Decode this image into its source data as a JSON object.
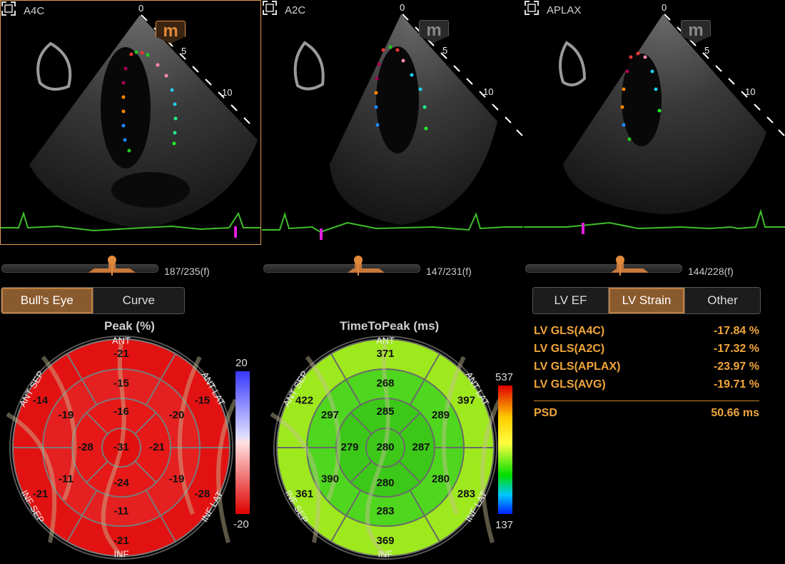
{
  "views": [
    {
      "label": "A4C",
      "frame": "187/235(f)",
      "active": true
    },
    {
      "label": "A2C",
      "frame": "147/231(f)",
      "active": false
    },
    {
      "label": "APLAX",
      "frame": "144/228(f)",
      "active": false
    }
  ],
  "depth_marks": [
    "0",
    "5",
    "10"
  ],
  "badge_letter": "m",
  "tabs_left": [
    {
      "label": "Bull's Eye",
      "on": true
    },
    {
      "label": "Curve",
      "on": false
    }
  ],
  "tabs_right": [
    {
      "label": "LV EF",
      "on": false
    },
    {
      "label": "LV Strain",
      "on": true
    },
    {
      "label": "Other",
      "on": false
    }
  ],
  "peak": {
    "title": "Peak (%)",
    "scale_max": "20",
    "scale_min": "-20",
    "walls": {
      "ant": "ANT",
      "ant_lat": "ANT LAT",
      "inf_lat": "INF LAT",
      "inf": "INF",
      "inf_sep": "INF SEP",
      "ant_sep": "ANT SEP"
    },
    "basal": [
      "-21",
      "-15",
      "-28",
      "-21",
      "-21",
      "-14"
    ],
    "mid": [
      "-15",
      "-20",
      "-19",
      "-11",
      "-11",
      "-19"
    ],
    "apical": [
      "-16",
      "-21",
      "-24",
      "-28"
    ],
    "apex": "-31"
  },
  "ttp": {
    "title": "TimeToPeak (ms)",
    "scale_max": "537",
    "scale_min": "137",
    "walls": {
      "ant": "ANT",
      "ant_lat": "ANT LAT",
      "inf_lat": "INF LAT",
      "inf": "INF",
      "inf_sep": "INF SEP",
      "ant_sep": "ANT SEP"
    },
    "basal": [
      "371",
      "397",
      "283",
      "369",
      "361",
      "422"
    ],
    "mid": [
      "268",
      "289",
      "280",
      "283",
      "390",
      "297"
    ],
    "apical": [
      "285",
      "287",
      "280",
      "279"
    ],
    "apex": "280"
  },
  "results": [
    {
      "label": "LV GLS(A4C)",
      "value": "-17.84 %"
    },
    {
      "label": "LV GLS(A2C)",
      "value": "-17.32 %"
    },
    {
      "label": "LV GLS(APLAX)",
      "value": "-23.97 %"
    },
    {
      "label": "LV GLS(AVG)",
      "value": "-19.71 %"
    }
  ],
  "psd": {
    "label": "PSD",
    "value": "50.66 ms"
  },
  "colors": {
    "accent": "#e08a3c",
    "ecg": "#3fbf2a",
    "result_text": "#f0a53a",
    "marker": "#e020e0"
  }
}
